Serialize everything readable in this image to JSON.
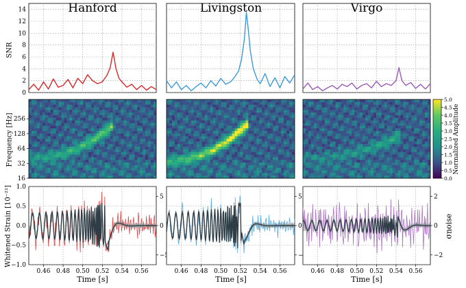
{
  "figure": {
    "detectors": [
      "Hanford",
      "Livingston",
      "Virgo"
    ],
    "colors": {
      "Hanford": "#d62728",
      "Livingston": "#3a9ad9",
      "Virgo": "#9b59b6",
      "reconstruction": "#2f3e46",
      "band": "#7f8c8d"
    }
  },
  "chart_data": [
    {
      "type": "line",
      "row": "snr",
      "ylabel": "SNR",
      "ylim": [
        0,
        15
      ],
      "yticks": [
        0,
        2,
        4,
        6,
        8,
        10,
        12,
        14
      ],
      "xlim": [
        0.445,
        0.575
      ],
      "xticks": [
        "0.46",
        "0.48",
        "0.50",
        "0.52",
        "0.54",
        "0.56"
      ],
      "grid": true,
      "series": [
        {
          "name": "Hanford",
          "x": [
            0.445,
            0.45,
            0.455,
            0.46,
            0.465,
            0.47,
            0.475,
            0.48,
            0.485,
            0.49,
            0.495,
            0.5,
            0.505,
            0.51,
            0.515,
            0.52,
            0.525,
            0.528,
            0.531,
            0.534,
            0.537,
            0.54,
            0.545,
            0.55,
            0.555,
            0.56,
            0.565,
            0.57,
            0.575
          ],
          "values": [
            0.5,
            1.4,
            0.4,
            1.8,
            0.6,
            2.3,
            0.9,
            1.2,
            2.2,
            0.8,
            2.4,
            1.5,
            3.0,
            2.0,
            1.5,
            1.8,
            3.0,
            4.2,
            6.8,
            4.0,
            2.4,
            1.8,
            0.9,
            1.4,
            0.5,
            1.2,
            0.4,
            1.0,
            0.5
          ]
        },
        {
          "name": "Livingston",
          "x": [
            0.445,
            0.45,
            0.455,
            0.46,
            0.465,
            0.47,
            0.475,
            0.48,
            0.485,
            0.49,
            0.495,
            0.5,
            0.505,
            0.51,
            0.514,
            0.518,
            0.521,
            0.524,
            0.526,
            0.528,
            0.53,
            0.533,
            0.537,
            0.54,
            0.545,
            0.55,
            0.555,
            0.56,
            0.565,
            0.57,
            0.575
          ],
          "values": [
            2.0,
            0.8,
            1.8,
            0.5,
            1.2,
            0.3,
            1.0,
            1.6,
            0.8,
            2.0,
            1.1,
            2.4,
            1.4,
            1.8,
            2.6,
            3.6,
            5.5,
            9.0,
            13.5,
            10.5,
            7.0,
            4.0,
            2.2,
            1.5,
            3.2,
            1.0,
            2.5,
            0.8,
            2.7,
            1.6,
            3.0
          ]
        },
        {
          "name": "Virgo",
          "x": [
            0.445,
            0.45,
            0.455,
            0.46,
            0.465,
            0.47,
            0.475,
            0.48,
            0.485,
            0.49,
            0.495,
            0.5,
            0.505,
            0.51,
            0.515,
            0.52,
            0.525,
            0.53,
            0.535,
            0.54,
            0.543,
            0.546,
            0.55,
            0.555,
            0.56,
            0.565,
            0.57,
            0.575
          ],
          "values": [
            0.6,
            1.6,
            0.5,
            1.0,
            0.3,
            0.8,
            1.2,
            0.6,
            1.4,
            1.0,
            1.6,
            0.6,
            1.2,
            1.5,
            0.8,
            1.9,
            1.0,
            1.5,
            1.2,
            2.0,
            4.2,
            2.0,
            1.2,
            1.7,
            0.7,
            1.4,
            0.6,
            1.5
          ]
        }
      ]
    },
    {
      "type": "heatmap",
      "row": "spectrogram",
      "ylabel": "Frequency [Hz]",
      "yticks": [
        "16",
        "32",
        "64",
        "128",
        "256"
      ],
      "ylim_log2": [
        4,
        9.3
      ],
      "colorbar": {
        "label": "Normalized Amplitude",
        "range": [
          0,
          5
        ],
        "ticks": [
          "0.0",
          "0.5",
          "1.0",
          "1.5",
          "2.0",
          "2.5",
          "3.0",
          "3.5",
          "4.0",
          "4.5",
          "5.0"
        ]
      },
      "chirp": {
        "Hanford": {
          "start_time": 0.445,
          "end_time": 0.532,
          "start_freq": 40,
          "end_freq": 200,
          "peak": 3.0
        },
        "Livingston": {
          "start_time": 0.445,
          "end_time": 0.529,
          "start_freq": 36,
          "end_freq": 220,
          "peak": 5.0
        },
        "Virgo": {
          "start_time": 0.445,
          "end_time": 0.545,
          "start_freq": 40,
          "end_freq": 120,
          "peak": 1.6
        }
      }
    },
    {
      "type": "line",
      "row": "strain",
      "ylabel": "Whitened Strain  [10⁻²¹]",
      "ylim": [
        -1.0,
        1.0
      ],
      "yticks": [
        "−1.0",
        "−0.5",
        "0.0",
        "0.5",
        "1.0"
      ],
      "right_label": "σnoise",
      "right_ticks": {
        "Hanford": [
          "−5",
          "0",
          "5"
        ],
        "Livingston": [
          "−5",
          "0",
          "5"
        ],
        "Virgo": [
          "−2",
          "0",
          "2"
        ]
      },
      "xlabel": "Time [s]",
      "xticks": [
        "0.46",
        "0.48",
        "0.50",
        "0.52",
        "0.54",
        "0.56"
      ],
      "merger_time": {
        "Hanford": 0.526,
        "Livingston": 0.524,
        "Virgo": 0.545
      }
    }
  ]
}
